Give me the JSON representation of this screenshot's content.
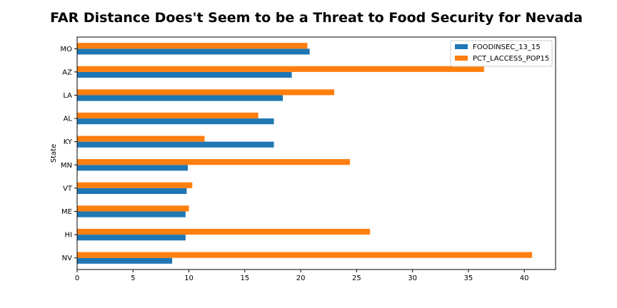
{
  "chart_data": {
    "type": "bar",
    "orientation": "horizontal",
    "title": "FAR Distance Does't Seem to be a Threat to Food Security for Nevada",
    "xlabel": "",
    "ylabel": "State",
    "xlim": [
      0,
      42.8
    ],
    "xticks": [
      0,
      5,
      10,
      15,
      20,
      25,
      30,
      35,
      40
    ],
    "categories": [
      "NV",
      "HI",
      "ME",
      "VT",
      "MN",
      "KY",
      "AL",
      "LA",
      "AZ",
      "MO"
    ],
    "series": [
      {
        "name": "FOODINSEC_13_15",
        "color": "#1f77b4",
        "values": [
          8.5,
          9.7,
          9.7,
          9.8,
          9.9,
          17.6,
          17.6,
          18.4,
          19.2,
          20.8
        ]
      },
      {
        "name": "PCT_LACCESS_POP15",
        "color": "#ff7f0e",
        "values": [
          40.7,
          26.2,
          10.0,
          10.3,
          24.4,
          11.4,
          16.2,
          23.0,
          36.4,
          20.6
        ]
      }
    ],
    "legend": "top-right",
    "grid": false
  }
}
